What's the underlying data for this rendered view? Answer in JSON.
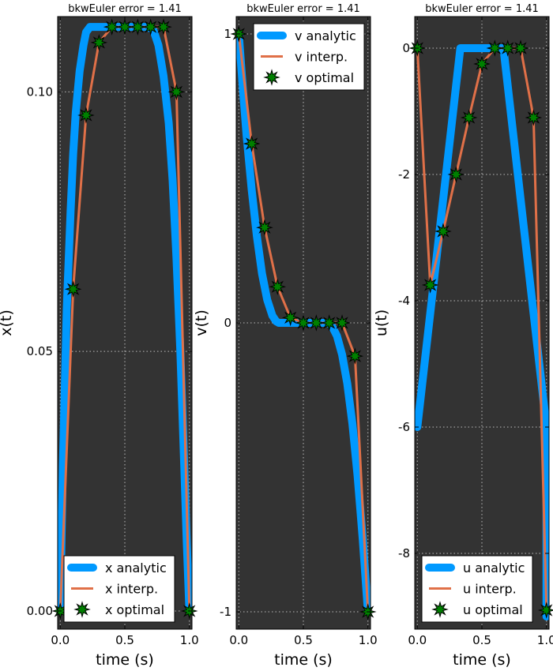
{
  "chart_data": [
    {
      "type": "line",
      "title": "bkwEuler error =  1.41",
      "xlabel": "time (s)",
      "ylabel": "x(t)",
      "xlim": [
        -0.02,
        1.02
      ],
      "ylim": [
        -0.0035,
        0.1145
      ],
      "xticks": [
        0.0,
        0.5,
        1.0
      ],
      "xtick_labels": [
        "0.0",
        "0.5",
        "1.0"
      ],
      "yticks": [
        0.0,
        0.05,
        0.1
      ],
      "ytick_labels": [
        "0.00",
        "0.05",
        "0.10"
      ],
      "grid": true,
      "legend_position": "lower-right",
      "series": [
        {
          "name": "x analytic",
          "color": "#0099ff",
          "style": "thick",
          "x": [
            0.0,
            0.02,
            0.05,
            0.08,
            0.1,
            0.12,
            0.15,
            0.18,
            0.2,
            0.23,
            0.26,
            0.3,
            0.33,
            0.36,
            0.4,
            0.5,
            0.6,
            0.67,
            0.72,
            0.76,
            0.8,
            0.84,
            0.87,
            0.9,
            0.93,
            0.96,
            0.98,
            1.0
          ],
          "y": [
            0.0,
            0.028,
            0.058,
            0.077,
            0.088,
            0.096,
            0.104,
            0.109,
            0.1115,
            0.1125,
            0.1125,
            0.1125,
            0.1125,
            0.1125,
            0.1125,
            0.1125,
            0.1125,
            0.1125,
            0.112,
            0.109,
            0.103,
            0.094,
            0.083,
            0.068,
            0.05,
            0.028,
            0.013,
            0.0
          ]
        },
        {
          "name": "x interp.",
          "color": "#e07048",
          "style": "line",
          "x": [
            0.0,
            0.1,
            0.2,
            0.3,
            0.4,
            0.5,
            0.6,
            0.7,
            0.8,
            0.9,
            1.0
          ],
          "y": [
            0.0,
            0.062,
            0.0955,
            0.1095,
            0.1125,
            0.1125,
            0.1125,
            0.1125,
            0.1125,
            0.1,
            0.0
          ]
        },
        {
          "name": "x optimal",
          "color": "#008000",
          "style": "marker",
          "x": [
            0.0,
            0.1,
            0.2,
            0.3,
            0.4,
            0.5,
            0.6,
            0.7,
            0.8,
            0.9,
            1.0
          ],
          "y": [
            0.0,
            0.062,
            0.0955,
            0.1095,
            0.1125,
            0.1125,
            0.1125,
            0.1125,
            0.1125,
            0.1,
            0.0
          ]
        }
      ]
    },
    {
      "type": "line",
      "title": "bkwEuler error =  1.41",
      "xlabel": "time (s)",
      "ylabel": "v(t)",
      "xlim": [
        -0.02,
        1.02
      ],
      "ylim": [
        -1.06,
        1.06
      ],
      "xticks": [
        0.0,
        0.5,
        1.0
      ],
      "xtick_labels": [
        "0.0",
        "0.5",
        "1.0"
      ],
      "yticks": [
        -1,
        0,
        1
      ],
      "ytick_labels": [
        "-1",
        "0",
        "1"
      ],
      "grid": true,
      "legend_position": "top-right",
      "series": [
        {
          "name": "v analytic",
          "color": "#0099ff",
          "style": "thick",
          "x": [
            0.0,
            0.03,
            0.06,
            0.1,
            0.14,
            0.18,
            0.22,
            0.26,
            0.29,
            0.31,
            0.33,
            0.36,
            0.5,
            0.65,
            0.69,
            0.72,
            0.76,
            0.8,
            0.84,
            0.88,
            0.92,
            0.96,
            1.0
          ],
          "y": [
            1.0,
            0.82,
            0.65,
            0.46,
            0.3,
            0.17,
            0.08,
            0.025,
            0.005,
            0.0,
            0.0,
            0.0,
            0.0,
            0.0,
            0.0,
            -0.01,
            -0.045,
            -0.11,
            -0.21,
            -0.35,
            -0.53,
            -0.75,
            -1.0
          ]
        },
        {
          "name": "v interp.",
          "color": "#e07048",
          "style": "line",
          "x": [
            0.0,
            0.1,
            0.2,
            0.3,
            0.4,
            0.5,
            0.6,
            0.7,
            0.8,
            0.9,
            1.0
          ],
          "y": [
            1.0,
            0.62,
            0.33,
            0.125,
            0.018,
            0.0,
            0.0,
            0.0,
            0.0,
            -0.115,
            -1.0
          ]
        },
        {
          "name": "v optimal",
          "color": "#008000",
          "style": "marker",
          "x": [
            0.0,
            0.1,
            0.2,
            0.3,
            0.4,
            0.5,
            0.6,
            0.7,
            0.8,
            0.9,
            1.0
          ],
          "y": [
            1.0,
            0.62,
            0.33,
            0.125,
            0.018,
            0.0,
            0.0,
            0.0,
            0.0,
            -0.115,
            -1.0
          ]
        }
      ]
    },
    {
      "type": "line",
      "title": "bkwEuler error =  1.41",
      "xlabel": "time (s)",
      "ylabel": "u(t)",
      "xlim": [
        -0.02,
        1.02
      ],
      "ylim": [
        -9.2,
        0.5
      ],
      "xticks": [
        0.0,
        0.5,
        1.0
      ],
      "xtick_labels": [
        "0.0",
        "0.5",
        "1.0"
      ],
      "yticks": [
        0,
        -2,
        -4,
        -6,
        -8
      ],
      "ytick_labels": [
        "0",
        "-2",
        "-4",
        "-6",
        "-8"
      ],
      "grid": true,
      "legend_position": "lower-right",
      "series": [
        {
          "name": "u analytic",
          "color": "#0099ff",
          "style": "thick",
          "x": [
            0.0,
            0.333,
            0.667,
            1.0,
            1.0
          ],
          "y": [
            -6.0,
            0.0,
            0.0,
            -6.0,
            -9.0
          ]
        },
        {
          "name": "u interp.",
          "color": "#e07048",
          "style": "line",
          "x": [
            0.0,
            0.1,
            0.2,
            0.3,
            0.4,
            0.5,
            0.6,
            0.7,
            0.8,
            0.9,
            1.0
          ],
          "y": [
            0.0,
            -3.75,
            -2.9,
            -2.0,
            -1.1,
            -0.25,
            0.0,
            0.0,
            0.0,
            -1.1,
            -8.9
          ]
        },
        {
          "name": "u optimal",
          "color": "#008000",
          "style": "marker",
          "x": [
            0.0,
            0.1,
            0.2,
            0.3,
            0.4,
            0.5,
            0.6,
            0.7,
            0.8,
            0.9,
            1.0
          ],
          "y": [
            0.0,
            -3.75,
            -2.9,
            -2.0,
            -1.1,
            -0.25,
            0.0,
            0.0,
            0.0,
            -1.1,
            -8.9
          ]
        }
      ]
    }
  ]
}
